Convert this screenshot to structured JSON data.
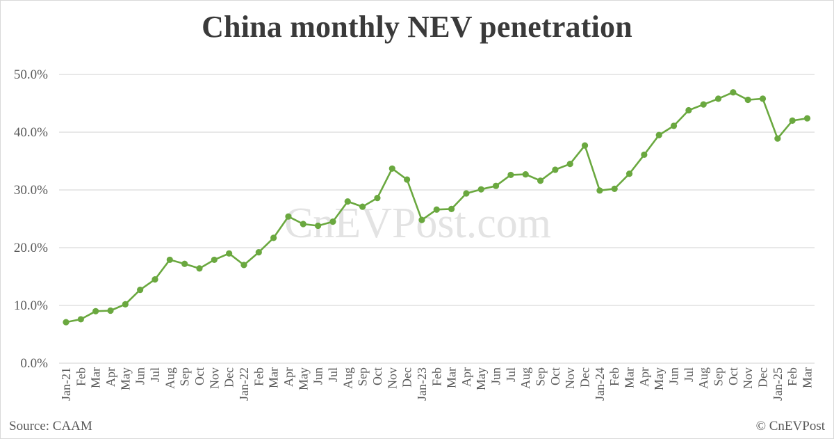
{
  "chart_data": {
    "type": "line",
    "title": "China monthly NEV penetration",
    "xlabel": "",
    "ylabel": "",
    "ylim": [
      0,
      50
    ],
    "yticks": [
      "0.0%",
      "10.0%",
      "20.0%",
      "30.0%",
      "40.0%",
      "50.0%"
    ],
    "grid": true,
    "legend": "none",
    "categories": [
      "Jan-21",
      "Feb",
      "Mar",
      "Apr",
      "May",
      "Jun",
      "Jul",
      "Aug",
      "Sep",
      "Oct",
      "Nov",
      "Dec",
      "Jan-22",
      "Feb",
      "Mar",
      "Apr",
      "May",
      "Jun",
      "Jul",
      "Aug",
      "Sep",
      "Oct",
      "Nov",
      "Dec",
      "Jan-23",
      "Feb",
      "Mar",
      "Apr",
      "May",
      "Jun",
      "Jul",
      "Aug",
      "Sep",
      "Oct",
      "Nov",
      "Dec",
      "Jan-24",
      "Feb",
      "Mar",
      "Apr",
      "May",
      "Jun",
      "Jul",
      "Aug",
      "Sep",
      "Oct",
      "Nov",
      "Dec",
      "Jan-25",
      "Feb",
      "Mar"
    ],
    "series": [
      {
        "name": "NEV penetration",
        "color": "#6aa83f",
        "values": [
          7.1,
          7.6,
          9.0,
          9.1,
          10.2,
          12.7,
          14.5,
          17.9,
          17.2,
          16.4,
          17.9,
          19.0,
          17.0,
          19.2,
          21.7,
          25.4,
          24.1,
          23.8,
          24.5,
          28.0,
          27.1,
          28.6,
          33.7,
          31.8,
          24.8,
          26.6,
          26.7,
          29.4,
          30.1,
          30.7,
          32.6,
          32.7,
          31.6,
          33.5,
          34.5,
          37.7,
          29.9,
          30.2,
          32.8,
          36.1,
          39.5,
          41.1,
          43.8,
          44.8,
          45.8,
          46.9,
          45.6,
          45.8,
          38.9,
          42.0,
          42.4
        ]
      }
    ],
    "annotations": [
      "CnEVPost.com"
    ]
  },
  "footer": {
    "source": "Source: CAAM",
    "copyright": "© CnEVPost"
  },
  "colors": {
    "line": "#6aa83f",
    "grid": "#d9d9d9",
    "text": "#595959",
    "title": "#3a3a3a",
    "watermark": "#e3e3e3"
  }
}
